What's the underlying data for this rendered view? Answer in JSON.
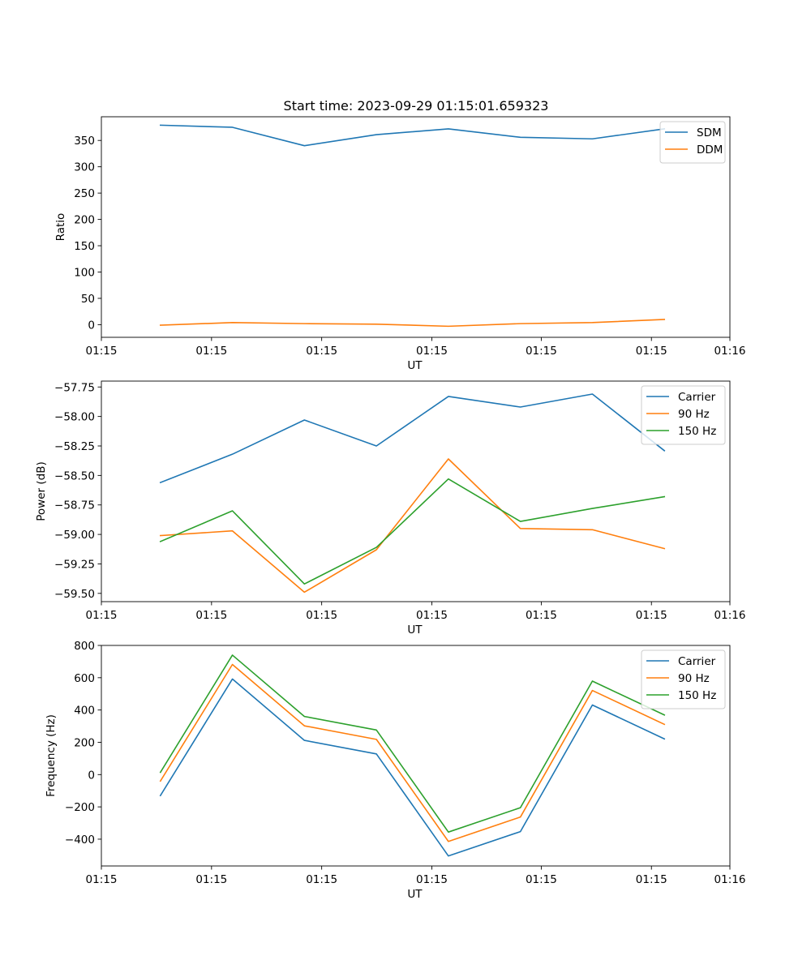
{
  "figure": {
    "title": "Start time: 2023-09-29 01:15:01.659323"
  },
  "chart_data": [
    {
      "type": "line",
      "title": "Start time: 2023-09-29 01:15:01.659323",
      "xlabel": "UT",
      "ylabel": "Ratio",
      "x": [
        1,
        2,
        3,
        4,
        5,
        6,
        7,
        8
      ],
      "xlim": [
        0.18,
        8.91
      ],
      "xticks": [
        0.18,
        1.71,
        3.24,
        4.77,
        6.29,
        7.82,
        8.91
      ],
      "xtick_labels": [
        "01:15",
        "01:15",
        "01:15",
        "01:15",
        "01:15",
        "01:15",
        "01:16"
      ],
      "ylim": [
        -24,
        395
      ],
      "yticks": [
        0,
        50,
        100,
        150,
        200,
        250,
        300,
        350
      ],
      "ytick_labels": [
        "0",
        "50",
        "100",
        "150",
        "200",
        "250",
        "300",
        "350"
      ],
      "legend": "top-right",
      "series": [
        {
          "name": "SDM",
          "color": "#1f77b4",
          "values": [
            379,
            375,
            340,
            361,
            372,
            356,
            353,
            372
          ]
        },
        {
          "name": "DDM",
          "color": "#ff7f0e",
          "values": [
            -1,
            4,
            2,
            1,
            -3,
            2,
            4,
            10
          ]
        }
      ]
    },
    {
      "type": "line",
      "title": "",
      "xlabel": "UT",
      "ylabel": "Power (dB)",
      "x": [
        1,
        2,
        3,
        4,
        5,
        6,
        7,
        8
      ],
      "xlim": [
        0.18,
        8.91
      ],
      "xticks": [
        0.18,
        1.71,
        3.24,
        4.77,
        6.29,
        7.82,
        8.91
      ],
      "xtick_labels": [
        "01:15",
        "01:15",
        "01:15",
        "01:15",
        "01:15",
        "01:15",
        "01:16"
      ],
      "ylim": [
        -59.57,
        -57.7
      ],
      "yticks": [
        -59.5,
        -59.25,
        -59.0,
        -58.75,
        -58.5,
        -58.25,
        -58.0,
        -57.75
      ],
      "ytick_labels": [
        "−59.50",
        "−59.25",
        "−59.00",
        "−58.75",
        "−58.50",
        "−58.25",
        "−58.00",
        "−57.75"
      ],
      "legend": "top-right",
      "series": [
        {
          "name": "Carrier",
          "color": "#1f77b4",
          "values": [
            -58.56,
            -58.32,
            -58.03,
            -58.25,
            -57.83,
            -57.92,
            -57.81,
            -58.29
          ]
        },
        {
          "name": "90 Hz",
          "color": "#ff7f0e",
          "values": [
            -59.01,
            -58.97,
            -59.49,
            -59.13,
            -58.36,
            -58.95,
            -58.96,
            -59.12
          ]
        },
        {
          "name": "150 Hz",
          "color": "#2ca02c",
          "values": [
            -59.06,
            -58.8,
            -59.42,
            -59.11,
            -58.53,
            -58.89,
            -58.78,
            -58.68
          ]
        }
      ]
    },
    {
      "type": "line",
      "title": "",
      "xlabel": "UT",
      "ylabel": "Frequency (Hz)",
      "x": [
        1,
        2,
        3,
        4,
        5,
        6,
        7,
        8
      ],
      "xlim": [
        0.18,
        8.91
      ],
      "xticks": [
        0.18,
        1.71,
        3.24,
        4.77,
        6.29,
        7.82,
        8.91
      ],
      "xtick_labels": [
        "01:15",
        "01:15",
        "01:15",
        "01:15",
        "01:15",
        "01:15",
        "01:16"
      ],
      "ylim": [
        -566,
        800
      ],
      "yticks": [
        -400,
        -200,
        0,
        200,
        400,
        600,
        800
      ],
      "ytick_labels": [
        "−400",
        "−200",
        "0",
        "200",
        "400",
        "600",
        "800"
      ],
      "legend": "top-right",
      "series": [
        {
          "name": "Carrier",
          "color": "#1f77b4",
          "values": [
            -130,
            592,
            212,
            128,
            -504,
            -353,
            431,
            221
          ]
        },
        {
          "name": "90 Hz",
          "color": "#ff7f0e",
          "values": [
            -40,
            682,
            302,
            218,
            -414,
            -263,
            521,
            311
          ]
        },
        {
          "name": "150 Hz",
          "color": "#2ca02c",
          "values": [
            14,
            740,
            360,
            276,
            -356,
            -205,
            579,
            369
          ]
        }
      ]
    }
  ]
}
